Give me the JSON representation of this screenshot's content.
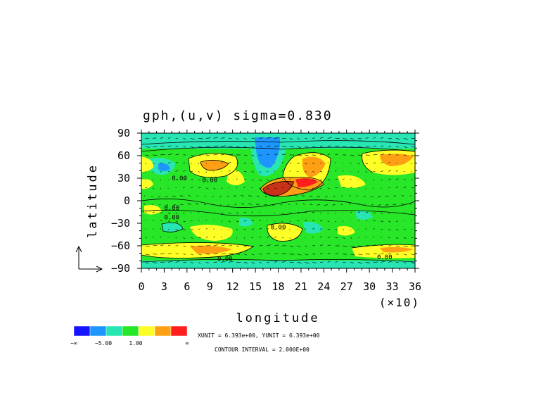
{
  "chart_data": {
    "type": "heatmap",
    "title": "gph,(u,v) sigma=0.830",
    "xlabel": "longitude",
    "ylabel": "latitude",
    "x_multiplier": "(×10)",
    "xlim": [
      0,
      36
    ],
    "ylim": [
      -90,
      90
    ],
    "xticks": [
      "0",
      "3",
      "6",
      "9",
      "12",
      "15",
      "18",
      "21",
      "24",
      "27",
      "30",
      "33",
      "36"
    ],
    "yticks": [
      "90",
      "60",
      "30",
      "0",
      "−30",
      "−60",
      "−90"
    ],
    "contour_labels": [
      "0.00",
      "0.00",
      "0.00",
      "0.00",
      "0.00",
      "0.00",
      "0.00"
    ],
    "colorbar": {
      "colors": [
        "#1414ff",
        "#1e96ff",
        "#28e6b4",
        "#28e628",
        "#ffff28",
        "#ffa014",
        "#ff1e1e"
      ],
      "labels": [
        "−∞",
        "−5.00",
        "1.00",
        "∞"
      ]
    },
    "annotations": {
      "units": "XUNIT = 6.393e+00, YUNIT = 6.393e+00",
      "contour_interval": "CONTOUR INTERVAL = 2.000E+00"
    },
    "features": [
      {
        "name": "high",
        "lon": 19,
        "lat": 18,
        "level": "red"
      },
      {
        "name": "high",
        "lon": 22,
        "lat": 28,
        "level": "red"
      },
      {
        "name": "high",
        "lon": 10,
        "lat": 50,
        "level": "yellow"
      },
      {
        "name": "high",
        "lon": 33,
        "lat": 57,
        "level": "orange"
      },
      {
        "name": "low",
        "lon": 16,
        "lat": 65,
        "level": "blue"
      },
      {
        "name": "band",
        "lon": 0,
        "lat": -65,
        "level": "yellow"
      }
    ]
  }
}
